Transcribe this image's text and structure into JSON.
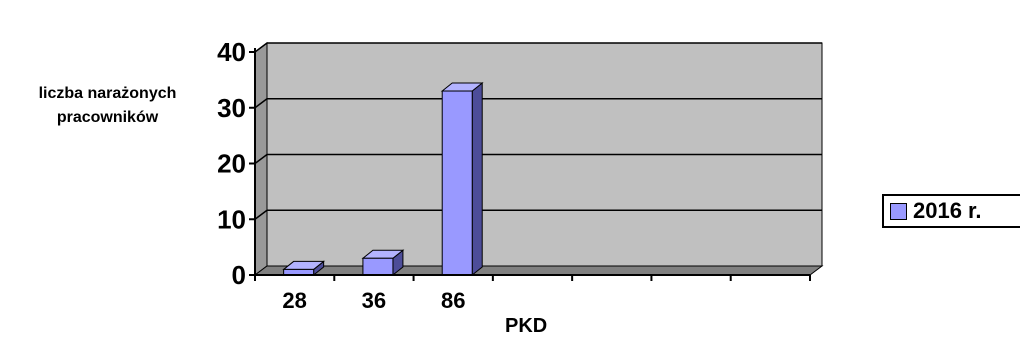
{
  "chart_data": {
    "type": "bar",
    "categories": [
      "28",
      "36",
      "86",
      "",
      "",
      "",
      ""
    ],
    "series": [
      {
        "name": "2016 r.",
        "values": [
          1,
          3,
          33,
          null,
          null,
          null,
          null
        ]
      }
    ],
    "xlabel": "PKD",
    "ylabel": "liczba narażonych pracowników",
    "ylim": [
      0,
      40
    ],
    "yticks": [
      "0",
      "10",
      "20",
      "30",
      "40"
    ],
    "grid": true,
    "legend": "right",
    "three_d": true,
    "colors": {
      "bar_front": "#9999ff",
      "bar_top": "#b3b3ff",
      "bar_side": "#4d4d99",
      "plot_back": "#c0c0c0",
      "plot_floor": "#808080",
      "plot_side": "#999999",
      "gridline": "#000000"
    }
  }
}
